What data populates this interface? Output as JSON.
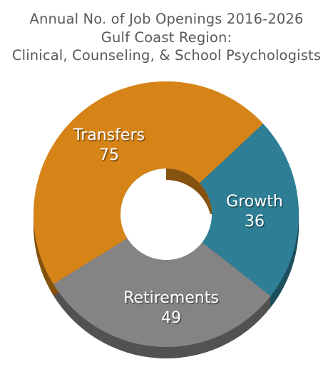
{
  "title": {
    "line1": "Annual No. of Job Openings 2016-2026",
    "line2": "Gulf Coast Region:",
    "line3": "Clinical, Counseling, & School Psychologists"
  },
  "chart_data": {
    "type": "pie",
    "variant": "donut",
    "title": "Annual No. of Job Openings 2016-2026 Gulf Coast Region: Clinical, Counseling, & School Psychologists",
    "categories": [
      "Growth",
      "Retirements",
      "Transfers"
    ],
    "values": [
      36,
      49,
      75
    ],
    "colors": [
      "#2e7f96",
      "#848484",
      "#d68418"
    ],
    "legend": "none",
    "labels_on_slices": true
  }
}
